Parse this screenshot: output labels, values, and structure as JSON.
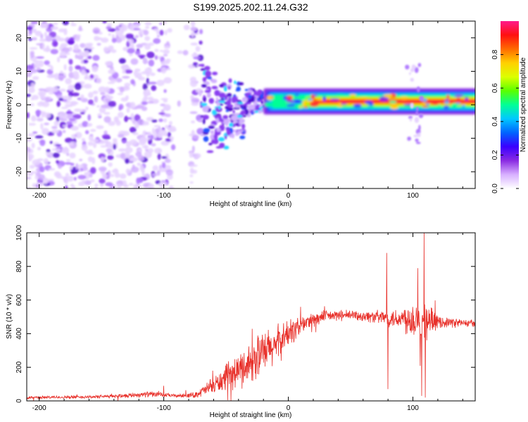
{
  "title": "S199.2025.202.11.24.G32",
  "chart_data": [
    {
      "type": "heatmap",
      "xlabel": "Height of straight line (km)",
      "ylabel": "Frequency (Hz)",
      "xlim": [
        -210,
        150
      ],
      "ylim": [
        -25,
        25
      ],
      "xticks": [
        -200,
        -100,
        0,
        100
      ],
      "yticks": [
        -20,
        -10,
        0,
        10,
        20
      ],
      "xtick_labels": [
        "-200",
        "-100",
        "0",
        "100"
      ],
      "ytick_labels": [
        "-20",
        "-10",
        "0",
        "10",
        "20"
      ],
      "colorbar": {
        "label": "Normalized spectral amplitude",
        "range": [
          0,
          1
        ],
        "ticks": [
          0,
          0.2,
          0.4,
          0.6,
          0.8
        ],
        "tick_labels": [
          "0.0",
          "0.2",
          "0.4",
          "0.6",
          "0.8"
        ],
        "colormap": [
          "#ffffff",
          "#d8b0ff",
          "#8a2be2",
          "#3a00ff",
          "#0064ff",
          "#00c8ff",
          "#00ff96",
          "#5aff00",
          "#dcff00",
          "#ffd000",
          "#ff6a00",
          "#ff1010",
          "#ff1a8c"
        ]
      },
      "description_of_features": {
        "noise_region_x": [
          -210,
          -70
        ],
        "transition_region_x": [
          -70,
          -20
        ],
        "band_region_x": [
          -20,
          150
        ],
        "band_center_hz": 1,
        "band_halfwidth_hz": 1.5
      },
      "grid": false
    },
    {
      "type": "line",
      "xlabel": "Height of straight line (km)",
      "ylabel": "SNR (10 * v/v)",
      "xlim": [
        -210,
        150
      ],
      "ylim": [
        0,
        1000
      ],
      "xticks": [
        -200,
        -100,
        0,
        100
      ],
      "yticks": [
        0,
        200,
        400,
        600,
        800,
        1000
      ],
      "xtick_labels": [
        "-200",
        "-100",
        "0",
        "100"
      ],
      "ytick_labels": [
        "0",
        "200",
        "400",
        "600",
        "800",
        "1000"
      ],
      "line_color": "#e8302a",
      "grid": false,
      "envelope": {
        "x": [
          -210,
          -150,
          -110,
          -100,
          -90,
          -75,
          -60,
          -40,
          -25,
          -10,
          0,
          15,
          30,
          50,
          70,
          80,
          90,
          100,
          110,
          120,
          150
        ],
        "mean": [
          20,
          25,
          40,
          35,
          30,
          35,
          90,
          180,
          260,
          330,
          400,
          470,
          505,
          510,
          500,
          495,
          490,
          490,
          480,
          470,
          460
        ],
        "amp": [
          10,
          12,
          20,
          15,
          12,
          20,
          60,
          120,
          160,
          140,
          100,
          60,
          40,
          35,
          45,
          60,
          80,
          140,
          150,
          40,
          25
        ]
      },
      "spikes": [
        {
          "x": 79,
          "y": 880
        },
        {
          "x": 80,
          "y": 70
        },
        {
          "x": 104,
          "y": 790
        },
        {
          "x": 107,
          "y": 30
        },
        {
          "x": 109,
          "y": 1000
        },
        {
          "x": 110,
          "y": 20
        },
        {
          "x": -100,
          "y": 90
        }
      ]
    }
  ]
}
